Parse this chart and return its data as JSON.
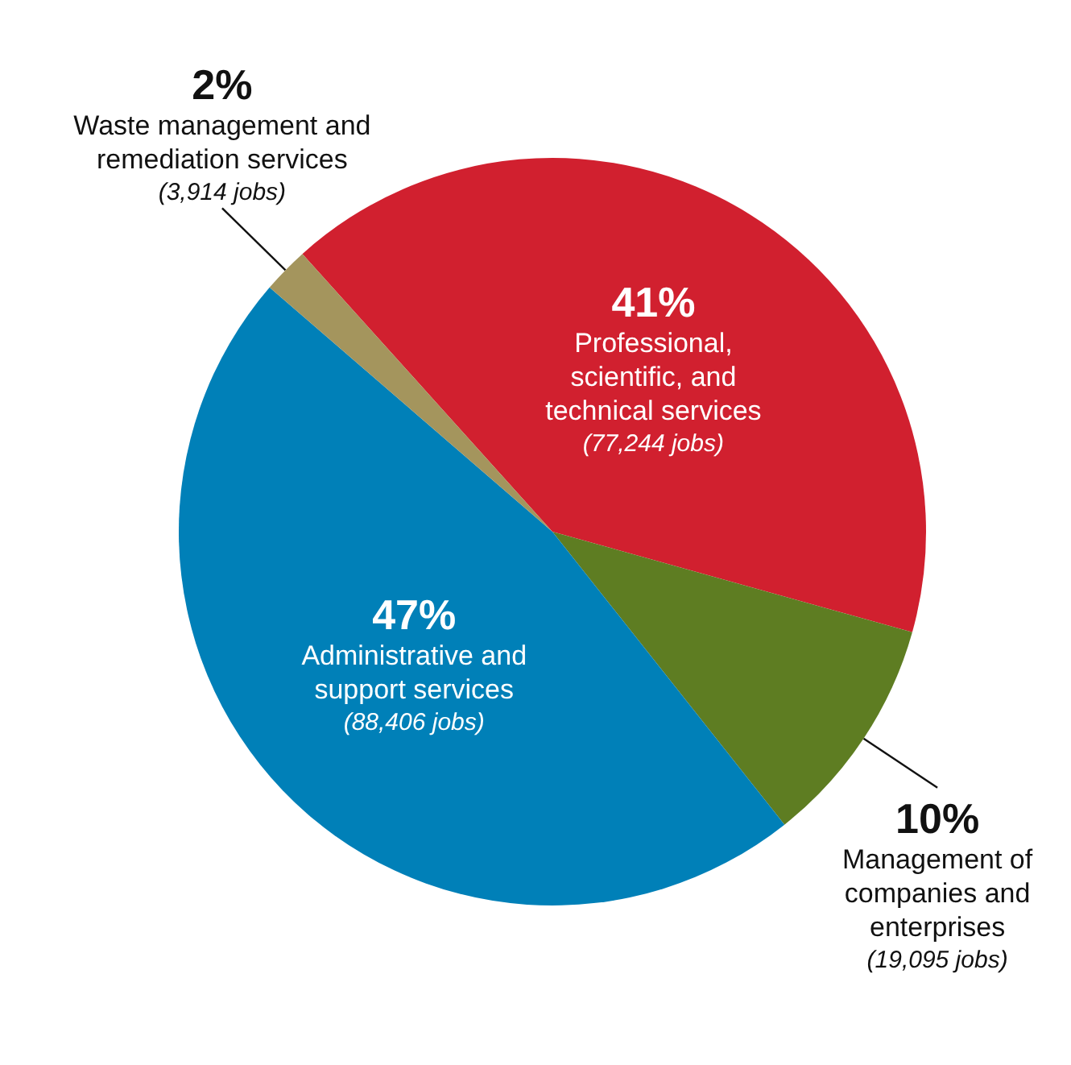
{
  "chart_data": {
    "type": "pie",
    "categories": [
      "Professional, scientific, and technical services",
      "Management of companies and enterprises",
      "Administrative and support services",
      "Waste management and remediation services"
    ],
    "values": [
      41,
      10,
      47,
      2
    ],
    "value_labels": [
      "41%\n(77,244 jobs)",
      "10%\n(19,095 jobs)",
      "47%\n(88,406 jobs)",
      "2%\n(3,914 jobs)"
    ],
    "colors": [
      "#d1202f",
      "#5e7d22",
      "#0080b8",
      "#a4955d"
    ],
    "legend": false
  }
}
